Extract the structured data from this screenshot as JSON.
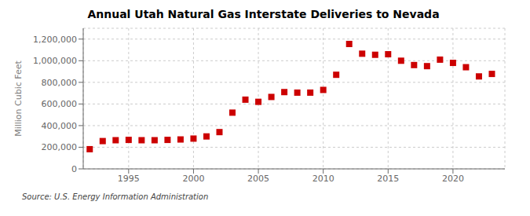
{
  "chart_data": {
    "type": "scatter",
    "title": "Annual Utah Natural Gas Interstate Deliveries to Nevada",
    "y_label": "Million Cubic Feet",
    "annotations": [
      "Source: U.S. Energy Information Administration"
    ],
    "x": [
      1992,
      1993,
      1994,
      1995,
      1996,
      1997,
      1998,
      1999,
      2000,
      2001,
      2002,
      2003,
      2004,
      2005,
      2006,
      2007,
      2008,
      2009,
      2010,
      2011,
      2012,
      2013,
      2014,
      2015,
      2016,
      2017,
      2018,
      2019,
      2020,
      2021,
      2022,
      2023
    ],
    "values": [
      182000,
      257000,
      265000,
      268000,
      265000,
      265000,
      268000,
      272000,
      280000,
      300000,
      340000,
      520000,
      640000,
      620000,
      665000,
      710000,
      705000,
      705000,
      730000,
      870000,
      1155000,
      1065000,
      1055000,
      1060000,
      1000000,
      960000,
      950000,
      1010000,
      980000,
      940000,
      855000,
      878000
    ],
    "color": "#cc0000",
    "marker": "square",
    "xlim": [
      1991.5,
      2024
    ],
    "ylim": [
      0,
      1300000
    ],
    "xticks": [
      1995,
      2000,
      2005,
      2010,
      2015,
      2020
    ],
    "yticks": [
      0,
      {
        "value": 200000,
        "label": "200,000"
      },
      {
        "value": 400000,
        "label": "400,000"
      },
      {
        "value": 600000,
        "label": "600,000"
      },
      {
        "value": 800000,
        "label": "800,000"
      },
      {
        "value": 1000000,
        "label": "1,000,000"
      },
      {
        "value": 1200000,
        "label": "1,200,000"
      }
    ],
    "grid": true
  }
}
